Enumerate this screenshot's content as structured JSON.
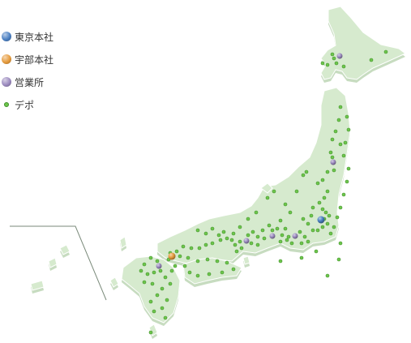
{
  "colors": {
    "land": "#d6eace",
    "land_stroke": "#ffffff",
    "shadow": "#c7dcc0",
    "leader_line": "#7a8a7a",
    "tokyo_hq": "#4a7fc2",
    "ube_hq": "#e59a3c",
    "sales_office": "#9b8abf",
    "depot": "#6ec64c",
    "depot_stroke": "#3f8f2a"
  },
  "legend": {
    "items": [
      {
        "key": "tokyo_hq",
        "label": "東京本社",
        "marker": "large-sphere"
      },
      {
        "key": "ube_hq",
        "label": "宇部本社",
        "marker": "large-sphere"
      },
      {
        "key": "sales_office",
        "label": "営業所",
        "marker": "large-sphere"
      },
      {
        "key": "depot",
        "label": "デポ",
        "marker": "small-dot"
      }
    ]
  },
  "map": {
    "region": "Japan",
    "locations": [
      {
        "name": "Tokyo",
        "type": "tokyo_hq"
      },
      {
        "name": "Ube",
        "type": "ube_hq"
      },
      {
        "name": "Sapporo",
        "type": "sales_office"
      },
      {
        "name": "Sendai",
        "type": "sales_office"
      },
      {
        "name": "Nagoya",
        "type": "sales_office"
      },
      {
        "name": "Osaka",
        "type": "sales_office"
      },
      {
        "name": "Fukuoka",
        "type": "sales_office"
      },
      {
        "name": "Shizuoka",
        "type": "sales_office"
      }
    ],
    "depot_count": 136
  }
}
